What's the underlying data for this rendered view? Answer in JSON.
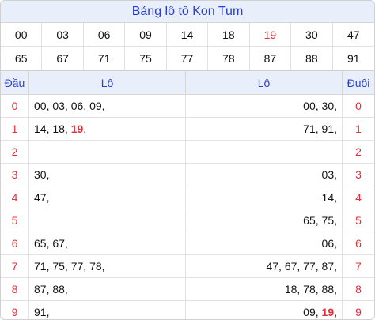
{
  "title": "Bảng lô tô Kon Tum",
  "numbers": [
    {
      "v": "00",
      "hot": false
    },
    {
      "v": "03",
      "hot": false
    },
    {
      "v": "06",
      "hot": false
    },
    {
      "v": "09",
      "hot": false
    },
    {
      "v": "14",
      "hot": false
    },
    {
      "v": "18",
      "hot": false
    },
    {
      "v": "19",
      "hot": true
    },
    {
      "v": "30",
      "hot": false
    },
    {
      "v": "47",
      "hot": false
    },
    {
      "v": "65",
      "hot": false
    },
    {
      "v": "67",
      "hot": false
    },
    {
      "v": "71",
      "hot": false
    },
    {
      "v": "75",
      "hot": false
    },
    {
      "v": "77",
      "hot": false
    },
    {
      "v": "78",
      "hot": false
    },
    {
      "v": "87",
      "hot": false
    },
    {
      "v": "88",
      "hot": false
    },
    {
      "v": "91",
      "hot": false
    }
  ],
  "headers": {
    "dau": "Đầu",
    "lo_left": "Lô",
    "lo_right": "Lô",
    "duoi": "Đuôi"
  },
  "rows": [
    {
      "dau": "0",
      "left": [
        {
          "t": "00, "
        },
        {
          "t": "03, "
        },
        {
          "t": "06, "
        },
        {
          "t": "09,"
        }
      ],
      "right": [
        {
          "t": "00, "
        },
        {
          "t": "30,"
        }
      ],
      "duoi": "0"
    },
    {
      "dau": "1",
      "left": [
        {
          "t": "14, "
        },
        {
          "t": "18, "
        },
        {
          "t": "19",
          "hot": true
        },
        {
          "t": ","
        }
      ],
      "right": [
        {
          "t": "71, "
        },
        {
          "t": "91,"
        }
      ],
      "duoi": "1"
    },
    {
      "dau": "2",
      "left": [],
      "right": [],
      "duoi": "2"
    },
    {
      "dau": "3",
      "left": [
        {
          "t": "30,"
        }
      ],
      "right": [
        {
          "t": "03,"
        }
      ],
      "duoi": "3"
    },
    {
      "dau": "4",
      "left": [
        {
          "t": "47,"
        }
      ],
      "right": [
        {
          "t": "14,"
        }
      ],
      "duoi": "4"
    },
    {
      "dau": "5",
      "left": [],
      "right": [
        {
          "t": "65, "
        },
        {
          "t": "75,"
        }
      ],
      "duoi": "5"
    },
    {
      "dau": "6",
      "left": [
        {
          "t": "65, "
        },
        {
          "t": "67,"
        }
      ],
      "right": [
        {
          "t": "06,"
        }
      ],
      "duoi": "6"
    },
    {
      "dau": "7",
      "left": [
        {
          "t": "71, "
        },
        {
          "t": "75, "
        },
        {
          "t": "77, "
        },
        {
          "t": "78,"
        }
      ],
      "right": [
        {
          "t": "47, "
        },
        {
          "t": "67, "
        },
        {
          "t": "77, "
        },
        {
          "t": "87,"
        }
      ],
      "duoi": "7"
    },
    {
      "dau": "8",
      "left": [
        {
          "t": "87, "
        },
        {
          "t": "88,"
        }
      ],
      "right": [
        {
          "t": "18, "
        },
        {
          "t": "78, "
        },
        {
          "t": "88,"
        }
      ],
      "duoi": "8"
    },
    {
      "dau": "9",
      "left": [
        {
          "t": "91,"
        }
      ],
      "right": [
        {
          "t": "09, "
        },
        {
          "t": "19",
          "hot": true
        },
        {
          "t": ","
        }
      ],
      "duoi": "9"
    }
  ],
  "colors": {
    "accent": "#2b3fcf",
    "hot": "#e0303a",
    "header_bg": "#e9eefb"
  }
}
